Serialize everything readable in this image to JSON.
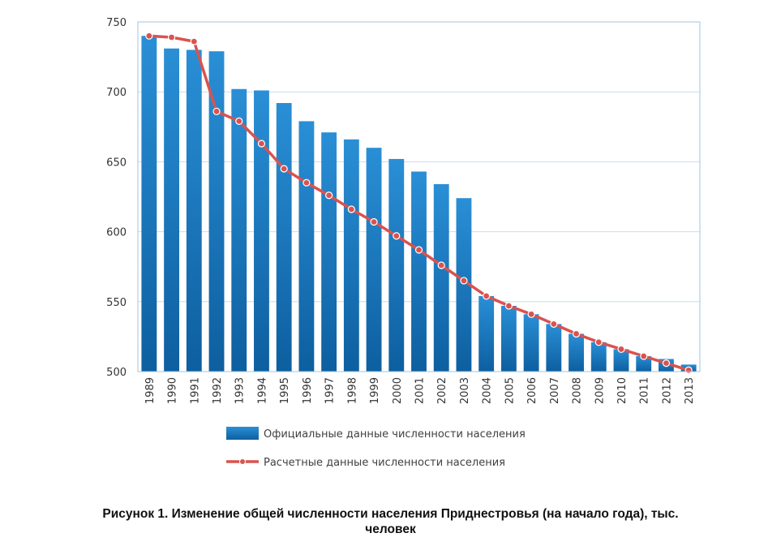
{
  "chart_data": {
    "type": "bar",
    "categories": [
      "1989",
      "1990",
      "1991",
      "1992",
      "1993",
      "1994",
      "1995",
      "1996",
      "1997",
      "1998",
      "1999",
      "2000",
      "2001",
      "2002",
      "2003",
      "2004",
      "2005",
      "2006",
      "2007",
      "2008",
      "2009",
      "2010",
      "2011",
      "2012",
      "2013"
    ],
    "series": [
      {
        "name": "Официальные данные численности населения",
        "type": "bar",
        "color": "#1a7cc4",
        "values": [
          740,
          731,
          730,
          729,
          702,
          701,
          692,
          679,
          671,
          666,
          660,
          652,
          643,
          634,
          624,
          554,
          547,
          541,
          534,
          527,
          521,
          516,
          511,
          509,
          505
        ]
      },
      {
        "name": "Расчетные данные численности населения",
        "type": "line",
        "color": "#d9534f",
        "values": [
          740,
          739,
          736,
          686,
          679,
          663,
          645,
          635,
          626,
          616,
          607,
          597,
          587,
          576,
          565,
          554,
          547,
          541,
          534,
          527,
          521,
          516,
          511,
          506,
          501
        ]
      }
    ],
    "yticks": [
      "500",
      "550",
      "600",
      "650",
      "700",
      "750"
    ],
    "ylim": [
      500,
      750
    ],
    "grid": true,
    "legend_position": "bottom"
  },
  "caption": {
    "line1": "Рисунок 1. Изменение общей численности населения Приднестровья (на начало года), тыс.",
    "line2": "человек"
  }
}
